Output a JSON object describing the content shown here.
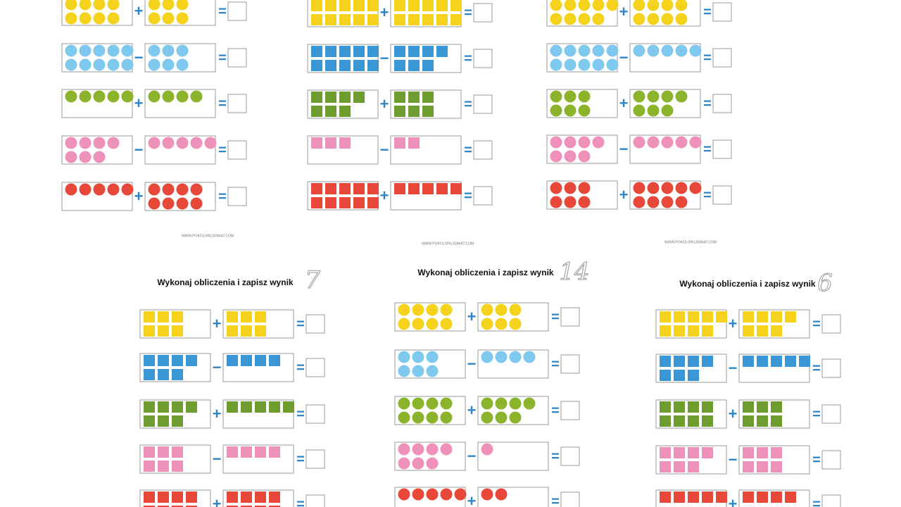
{
  "sheets": [
    {
      "shape": "circle",
      "footer": "WWW.POKOLORUJSWIAT.COM",
      "equals": "=",
      "rows": [
        {
          "color": "#f5d21b",
          "left": 8,
          "op": "+",
          "right": 6
        },
        {
          "color": "#7fc8ee",
          "left": 10,
          "op": "−",
          "right": 6
        },
        {
          "color": "#8cb32c",
          "left": 5,
          "op": "+",
          "right": 4
        },
        {
          "color": "#ef92bb",
          "left": 7,
          "op": "−",
          "right": 5
        },
        {
          "color": "#e8483a",
          "left": 5,
          "op": "+",
          "right": 8
        }
      ]
    },
    {
      "shape": "square",
      "footer": "WWW.POKOLORUJSWIAT.COM",
      "equals": "=",
      "rows": [
        {
          "color": "#f5d21b",
          "left": 10,
          "op": "+",
          "right": 10
        },
        {
          "color": "#3a97d6",
          "left": 10,
          "op": "−",
          "right": 7
        },
        {
          "color": "#6f9c2e",
          "left": 7,
          "op": "+",
          "right": 6
        },
        {
          "color": "#ef92bb",
          "left": 3,
          "op": "−",
          "right": 2
        },
        {
          "color": "#e8483a",
          "left": 10,
          "op": "+",
          "right": 5
        }
      ]
    },
    {
      "shape": "circle",
      "footer": "WWW.POKOLORUJSWIAT.COM",
      "equals": "=",
      "rows": [
        {
          "color": "#f5d21b",
          "left": 9,
          "op": "+",
          "right": 8
        },
        {
          "color": "#7fc8ee",
          "left": 10,
          "op": "−",
          "right": 5
        },
        {
          "color": "#8cb32c",
          "left": 6,
          "op": "+",
          "right": 7
        },
        {
          "color": "#ef92bb",
          "left": 7,
          "op": "−",
          "right": 5
        },
        {
          "color": "#e8483a",
          "left": 6,
          "op": "+",
          "right": 9
        }
      ]
    },
    {
      "shape": "square",
      "title": "Wykonaj obliczenia i zapisz wynik",
      "number": "7",
      "equals": "=",
      "rows": [
        {
          "color": "#f5d21b",
          "left": 6,
          "op": "+",
          "right": 6
        },
        {
          "color": "#3a97d6",
          "left": 7,
          "op": "−",
          "right": 4
        },
        {
          "color": "#6f9c2e",
          "left": 7,
          "op": "+",
          "right": 5
        },
        {
          "color": "#ef92bb",
          "left": 6,
          "op": "−",
          "right": 4
        },
        {
          "color": "#e8483a",
          "left": 8,
          "op": "+",
          "right": 8
        }
      ]
    },
    {
      "shape": "circle",
      "title": "Wykonaj obliczenia i zapisz wynik",
      "number": "14",
      "equals": "=",
      "rows": [
        {
          "color": "#f5d21b",
          "left": 8,
          "op": "+",
          "right": 6
        },
        {
          "color": "#7fc8ee",
          "left": 6,
          "op": "−",
          "right": 4
        },
        {
          "color": "#8cb32c",
          "left": 8,
          "op": "+",
          "right": 7
        },
        {
          "color": "#ef92bb",
          "left": 7,
          "op": "−",
          "right": 1
        },
        {
          "color": "#e8483a",
          "left": 5,
          "op": "+",
          "right": 2
        }
      ]
    },
    {
      "shape": "square",
      "title": "Wykonaj obliczenia i zapisz wynik",
      "number": "6",
      "equals": "=",
      "rows": [
        {
          "color": "#f5d21b",
          "left": 9,
          "op": "+",
          "right": 7
        },
        {
          "color": "#3a97d6",
          "left": 7,
          "op": "−",
          "right": 5
        },
        {
          "color": "#6f9c2e",
          "left": 8,
          "op": "+",
          "right": 6
        },
        {
          "color": "#ef92bb",
          "left": 7,
          "op": "−",
          "right": 6
        },
        {
          "color": "#e8483a",
          "left": 5,
          "op": "+",
          "right": 4
        }
      ]
    }
  ]
}
